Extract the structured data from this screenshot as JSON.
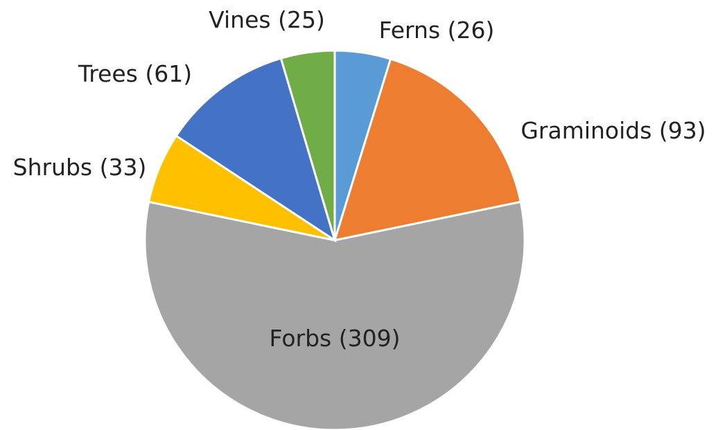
{
  "chart_data": {
    "type": "pie",
    "categories": [
      "Ferns",
      "Graminoids",
      "Forbs",
      "Shrubs",
      "Trees",
      "Vines"
    ],
    "values": [
      26,
      93,
      309,
      33,
      61,
      25
    ],
    "value_labels": [
      "(26)",
      "(93)",
      "(309)",
      "(33)",
      "(61)",
      "(25)"
    ],
    "colors": [
      "#5b9bd5",
      "#ed7d31",
      "#a5a5a5",
      "#ffc000",
      "#4472c4",
      "#70ad47"
    ]
  }
}
